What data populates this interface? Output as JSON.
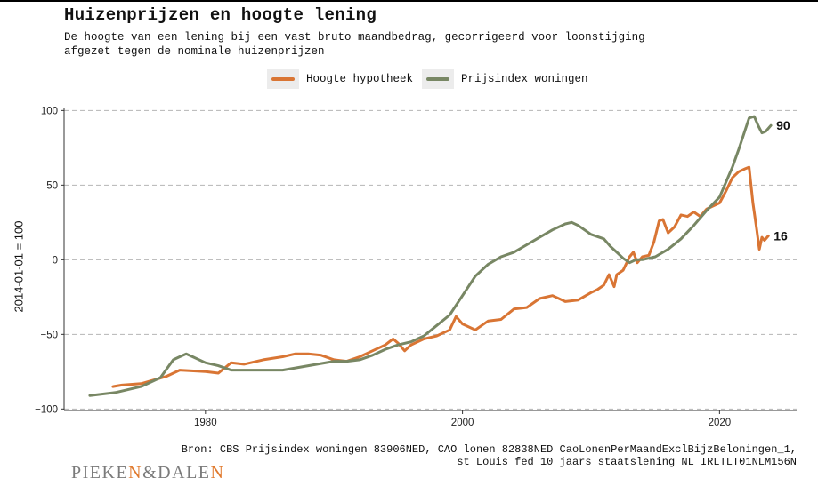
{
  "header": {
    "title": "Huizenprijzen en hoogte lening",
    "subtitle_line1": "De hoogte van een lening bij een vast bruto maandbedrag, gecorrigeerd voor loonstijging",
    "subtitle_line2": "afgezet tegen de nominale huizenprijzen"
  },
  "legend": {
    "items": [
      {
        "label": "Hoogte hypotheek",
        "color": "#d97534"
      },
      {
        "label": "Prijsindex woningen",
        "color": "#788764"
      }
    ]
  },
  "axes": {
    "ylabel": "2014-01-01 = 100",
    "yticks": [
      "100",
      "50",
      "0",
      "−50",
      "−100"
    ],
    "xticks": [
      "1980",
      "2000",
      "2020"
    ]
  },
  "end_labels": {
    "hypotheek": "16",
    "prijsindex": "90"
  },
  "footer": {
    "source_line1": "Bron: CBS Prijsindex woningen 83906NED, CAO lonen 82838NED CaoLonenPerMaandExclBijzBeloningen_1,",
    "source_line2": "st Louis fed 10 jaars staatslening NL IRLTLT01NLM156N",
    "logo_part1": "PIEKE",
    "logo_accent1": "N",
    "logo_part2": "&DALE",
    "logo_accent2": "N"
  },
  "chart_data": {
    "type": "line",
    "title": "Huizenprijzen en hoogte lening",
    "ylabel": "2014-01-01 = 100",
    "xlim": [
      1969,
      2026
    ],
    "ylim": [
      -101,
      102
    ],
    "yticks": [
      -100,
      -50,
      0,
      50,
      100
    ],
    "xticks": [
      1980,
      2000,
      2020
    ],
    "grid": "horizontal dashed",
    "legend_position": "top",
    "series": [
      {
        "name": "Hoogte hypotheek",
        "color": "#d97534",
        "x": [
          1972.8,
          1973.5,
          1975,
          1977,
          1978,
          1980,
          1981,
          1982,
          1983,
          1984.5,
          1986,
          1987,
          1988,
          1989,
          1990,
          1991,
          1992,
          1993,
          1994,
          1994.6,
          1995,
          1995.5,
          1996,
          1997,
          1998,
          1999,
          1999.5,
          2000,
          2001,
          2002,
          2003,
          2004,
          2005,
          2006,
          2007,
          2008,
          2009,
          2010,
          2010.5,
          2011,
          2011.4,
          2011.8,
          2012,
          2012.5,
          2013,
          2013.3,
          2013.6,
          2014,
          2014.5,
          2014.9,
          2015.3,
          2015.6,
          2016,
          2016.5,
          2017,
          2017.5,
          2018,
          2018.5,
          2019,
          2019.5,
          2020,
          2020.5,
          2021,
          2021.5,
          2022,
          2022.3,
          2022.6,
          2022.9,
          2023.1,
          2023.3,
          2023.5,
          2023.8
        ],
        "y": [
          -85,
          -84,
          -83,
          -78,
          -74,
          -75,
          -76,
          -69,
          -70,
          -67,
          -65,
          -63,
          -63,
          -64,
          -67,
          -68,
          -65,
          -61,
          -57,
          -53,
          -56,
          -61,
          -57,
          -53,
          -51,
          -47,
          -38,
          -43,
          -47,
          -41,
          -40,
          -33,
          -32,
          -26,
          -24,
          -28,
          -27,
          -22,
          -20,
          -17,
          -10,
          -18,
          -10,
          -7,
          2,
          5,
          -2,
          2,
          3,
          12,
          26,
          27,
          18,
          22,
          30,
          29,
          32,
          29,
          34,
          36,
          38,
          46,
          55,
          59,
          61,
          62,
          38,
          20,
          7,
          15,
          13,
          16
        ]
      },
      {
        "name": "Prijsindex woningen",
        "color": "#788764",
        "x": [
          1971,
          1973,
          1975,
          1976.5,
          1977.5,
          1978,
          1978.5,
          1979,
          1980,
          1981,
          1982,
          1984,
          1986,
          1988,
          1990,
          1991,
          1992,
          1993,
          1994,
          1995,
          1996,
          1997,
          1998,
          1999,
          2000,
          2001,
          2002,
          2003,
          2004,
          2005,
          2006,
          2007,
          2008,
          2008.5,
          2009,
          2010,
          2011,
          2011.5,
          2012,
          2012.5,
          2013,
          2013.5,
          2014,
          2015,
          2016,
          2017,
          2018,
          2019,
          2020,
          2021,
          2021.5,
          2022,
          2022.3,
          2022.7,
          2023,
          2023.3,
          2023.6,
          2024
        ],
        "y": [
          -91,
          -89,
          -85,
          -79,
          -67,
          -65,
          -63,
          -65,
          -69,
          -71,
          -74,
          -74,
          -74,
          -71,
          -68,
          -68,
          -67,
          -64,
          -60,
          -57,
          -55,
          -51,
          -44,
          -37,
          -24,
          -11,
          -3,
          2,
          5,
          10,
          15,
          20,
          24,
          25,
          23,
          17,
          14,
          9,
          5,
          1,
          -2,
          0,
          0,
          2,
          7,
          14,
          23,
          33,
          42,
          62,
          74,
          87,
          95,
          96,
          90,
          85,
          86,
          90
        ]
      }
    ]
  }
}
